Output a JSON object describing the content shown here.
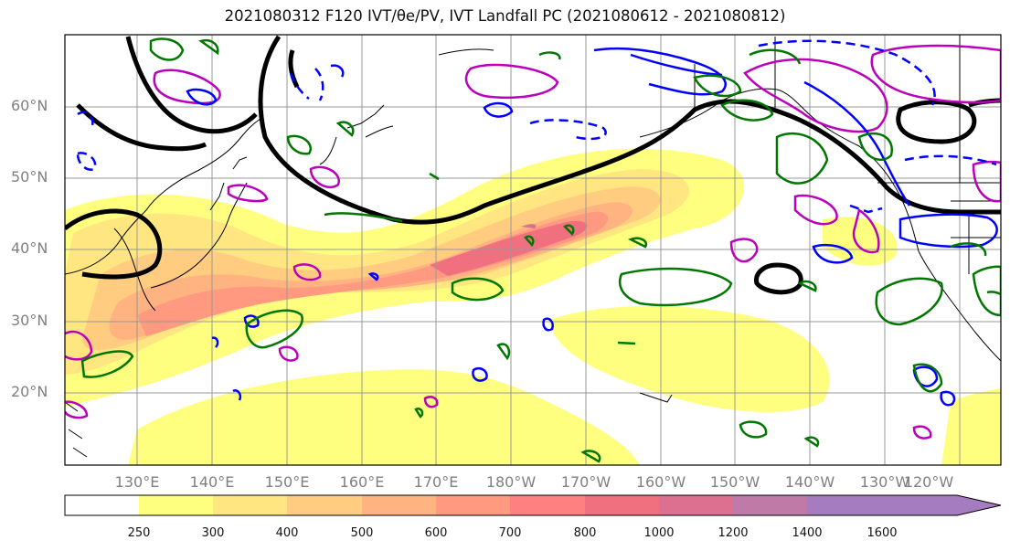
{
  "figure": {
    "title": "2021080312 F120 IVT/θe/PV, IVT Landfall PC (2021080612 - 2021080812)",
    "lat_labels": [
      "60°N",
      "50°N",
      "40°N",
      "30°N",
      "20°N"
    ],
    "lon_labels": [
      "130°E",
      "140°E",
      "150°E",
      "160°E",
      "170°E",
      "180°W",
      "170°W",
      "160°W",
      "150°W",
      "140°W",
      "130°W",
      "120°W"
    ]
  },
  "colorbar": {
    "levels": [
      "250",
      "300",
      "400",
      "500",
      "600",
      "700",
      "800",
      "1000",
      "1200",
      "1400",
      "1600"
    ],
    "colors": [
      "#ffffff",
      "#ffff7f",
      "#ffe680",
      "#ffcc80",
      "#ffb380",
      "#ff9980",
      "#ff8080",
      "#f07080",
      "#dd7090",
      "#c07aa8",
      "#a67cc0"
    ],
    "extend": "max"
  },
  "legend_colors": {
    "ivt_pc_positive": "#000000",
    "theta_e": "#0000ff",
    "pv_magenta": "#bb00bb",
    "green_contour": "#007700"
  }
}
